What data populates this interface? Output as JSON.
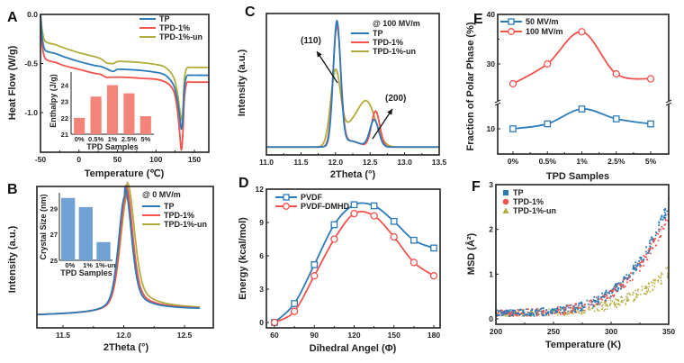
{
  "colors": {
    "blue": "#2b7bba",
    "red": "#f4524d",
    "olive": "#b2ad3a",
    "bar_red": "#f4847a",
    "bar_blue": "#6fa2d3",
    "axis": "#222222"
  },
  "chart_data": [
    {
      "panel": "A",
      "type": "line",
      "title": "",
      "xlabel": "Temperature (℃)",
      "ylabel": "Heat Flow (W/g)",
      "xlim": [
        -50,
        168
      ],
      "ylim": [
        -1.42,
        0.0
      ],
      "xticks": [
        -50,
        0,
        50,
        100,
        150
      ],
      "yticks": [
        0.0,
        -0.5,
        -1.0
      ],
      "ytick_labels": [
        "0.0",
        "-0.5",
        "-1.0"
      ],
      "x": [
        -50,
        -48,
        -45,
        -40,
        -30,
        -20,
        0,
        20,
        28,
        35,
        40,
        45,
        50,
        60,
        80,
        100,
        110,
        118,
        124,
        128,
        131,
        133,
        135,
        137,
        140,
        145,
        155,
        168
      ],
      "series": [
        {
          "name": "TP",
          "color": "blue",
          "values": [
            0.0,
            -0.22,
            -0.35,
            -0.38,
            -0.4,
            -0.43,
            -0.48,
            -0.52,
            -0.53,
            -0.55,
            -0.57,
            -0.58,
            -0.56,
            -0.56,
            -0.57,
            -0.59,
            -0.61,
            -0.66,
            -0.74,
            -0.88,
            -1.05,
            -1.17,
            -1.05,
            -0.75,
            -0.63,
            -0.62,
            -0.62,
            -0.62
          ]
        },
        {
          "name": "TPD-1%",
          "color": "red",
          "values": [
            0.0,
            -0.3,
            -0.43,
            -0.47,
            -0.49,
            -0.52,
            -0.56,
            -0.6,
            -0.61,
            -0.64,
            -0.64,
            -0.64,
            -0.64,
            -0.64,
            -0.65,
            -0.66,
            -0.68,
            -0.72,
            -0.8,
            -0.98,
            -1.22,
            -1.38,
            -1.22,
            -0.85,
            -0.7,
            -0.69,
            -0.69,
            -0.69
          ]
        },
        {
          "name": "TPD-1%-un",
          "color": "olive",
          "values": [
            0.0,
            -0.15,
            -0.26,
            -0.29,
            -0.31,
            -0.34,
            -0.39,
            -0.43,
            -0.45,
            -0.49,
            -0.5,
            -0.5,
            -0.48,
            -0.48,
            -0.49,
            -0.51,
            -0.53,
            -0.58,
            -0.66,
            -0.8,
            -0.97,
            -1.08,
            -0.97,
            -0.66,
            -0.55,
            -0.54,
            -0.54,
            -0.54
          ]
        }
      ],
      "legend": "top-right",
      "inset": {
        "type": "bar",
        "xlabel": "TPD Samples",
        "ylabel": "Enthalpy (J/g)",
        "categories": [
          "0%",
          "0.5%",
          "1%",
          "2.5%",
          "5%"
        ],
        "values": [
          22.0,
          23.3,
          24.0,
          23.5,
          22.1
        ],
        "ylim": [
          21,
          24.8
        ],
        "yticks": [
          21,
          22,
          23,
          24
        ]
      }
    },
    {
      "panel": "B",
      "type": "line",
      "title": "",
      "xlabel": "2Theta (°)",
      "ylabel": "Intensity (a.u.)",
      "xlim": [
        11.29,
        12.63
      ],
      "xticks": [
        11.5,
        12.0,
        12.5
      ],
      "annotation": "@ 0 MV/m",
      "series": [
        {
          "name": "TP",
          "color": "blue",
          "peak": 12.01
        },
        {
          "name": "TPD-1%",
          "color": "red",
          "peak": 12.02
        },
        {
          "name": "TPD-1%-un",
          "color": "olive",
          "peak": 12.03
        }
      ],
      "legend": "top-right",
      "inset": {
        "type": "bar",
        "xlabel": "TPD Samples",
        "ylabel": "Crystal Size (nm)",
        "categories": [
          "0%",
          "1%",
          "1%-un"
        ],
        "values": [
          29.8,
          29.1,
          26.4
        ],
        "ylim": [
          25,
          30.2
        ],
        "yticks": [
          25,
          27,
          29
        ]
      }
    },
    {
      "panel": "C",
      "type": "line",
      "title": "",
      "xlabel": "2Theta (°)",
      "ylabel": "Intensity (a.u.)",
      "xlim": [
        11.0,
        13.5
      ],
      "xticks": [
        11.0,
        11.5,
        12.0,
        12.5,
        13.0,
        13.5
      ],
      "annotation": "@ 100 MV/m",
      "peak_labels": [
        "(110)",
        "(200)"
      ],
      "series": [
        {
          "name": "TP",
          "color": "blue",
          "peak110": 1.0,
          "peak200": 0.22
        },
        {
          "name": "TPD-1%",
          "color": "red",
          "peak110": 0.96,
          "peak200": 0.29
        },
        {
          "name": "TPD-1%-un",
          "color": "olive",
          "peak110": 0.58,
          "peak200": 0.3
        }
      ],
      "legend": "top-right"
    },
    {
      "panel": "D",
      "type": "line",
      "title": "",
      "xlabel": "Dihedral Angel (Φ)",
      "ylabel": "Energy (kcal/mol)",
      "xlim": [
        56,
        184
      ],
      "ylim": [
        -0.6,
        12
      ],
      "xticks": [
        60,
        90,
        120,
        150,
        180
      ],
      "yticks": [
        0,
        3,
        6,
        9,
        12
      ],
      "x": [
        60,
        75,
        90,
        105,
        120,
        135,
        150,
        165,
        180
      ],
      "series": [
        {
          "name": "PVDF",
          "color": "blue",
          "marker": "square",
          "values": [
            0.0,
            1.7,
            5.2,
            8.8,
            10.6,
            10.5,
            9.1,
            7.4,
            6.7
          ]
        },
        {
          "name": "PVDF-DMHD",
          "color": "red",
          "marker": "circle",
          "values": [
            0.0,
            1.0,
            4.2,
            7.5,
            9.8,
            9.6,
            7.7,
            5.4,
            4.2
          ]
        }
      ],
      "legend": "top-left"
    },
    {
      "panel": "E",
      "type": "line",
      "title": "",
      "xlabel": "TPD Samples",
      "ylabel": "Fraction of Polar Phase (%)",
      "categories": [
        "0%",
        "0.5%",
        "1%",
        "2.5%",
        "5%"
      ],
      "yticks": [
        10,
        30,
        40
      ],
      "axis_break": true,
      "series": [
        {
          "name": "50 MV/m",
          "color": "blue",
          "marker": "square",
          "values": [
            10.0,
            11.0,
            14.0,
            12.0,
            11.0
          ]
        },
        {
          "name": "100 MV/m",
          "color": "red",
          "marker": "circle",
          "values": [
            26.0,
            30.0,
            36.5,
            28.0,
            27.0
          ]
        }
      ],
      "legend": "top-left"
    },
    {
      "panel": "F",
      "type": "scatter",
      "title": "",
      "xlabel": "Temperature (K)",
      "ylabel": "MSD (Å²)",
      "xlim": [
        200,
        350
      ],
      "ylim": [
        -0.05,
        3
      ],
      "xticks": [
        200,
        250,
        300,
        350
      ],
      "yticks": [
        0,
        1,
        2,
        3
      ],
      "series": [
        {
          "name": "TP",
          "color": "blue",
          "marker": "square",
          "end_value": 2.5
        },
        {
          "name": "TPD-1%",
          "color": "red",
          "marker": "circle",
          "end_value": 2.3
        },
        {
          "name": "TPD-1%-un",
          "color": "olive",
          "marker": "triangle",
          "end_value": 1.0
        }
      ],
      "legend": "top-left"
    }
  ]
}
